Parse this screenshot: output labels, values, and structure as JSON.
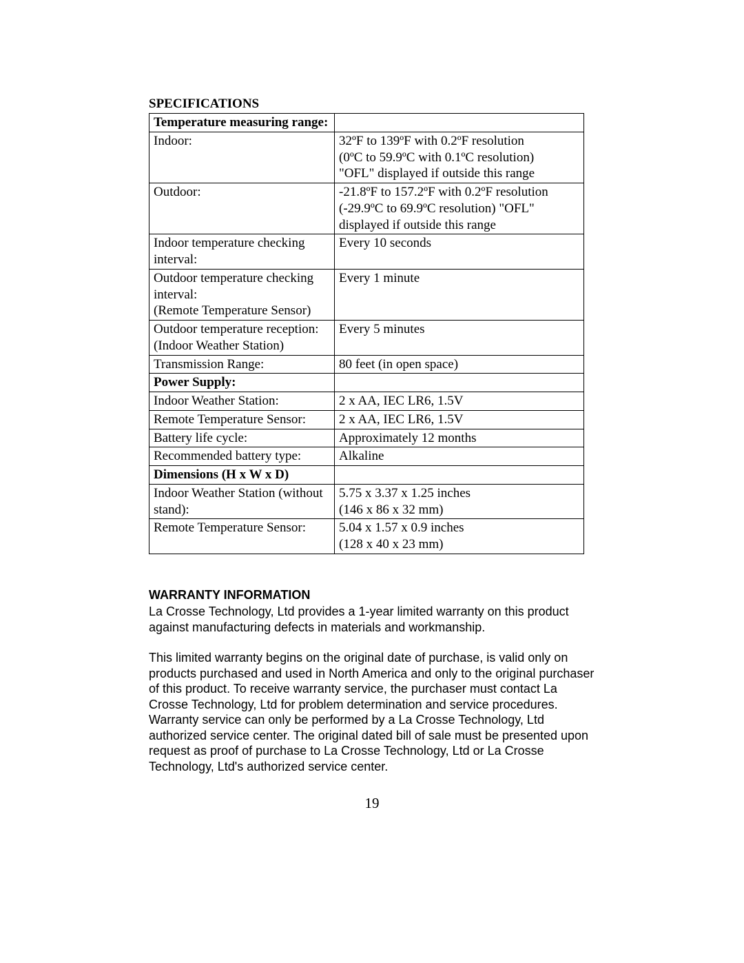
{
  "spec_title": "SPECIFICATIONS",
  "table": {
    "rows": [
      {
        "left": "Temperature measuring range:",
        "right": "",
        "left_bold": true
      },
      {
        "left": "Indoor:",
        "right": "32ºF to 139ºF with 0.2ºF resolution\n(0ºC to 59.9ºC with 0.1ºC resolution)\n\"OFL\" displayed if outside this range"
      },
      {
        "left": "Outdoor:",
        "right": "-21.8ºF to 157.2ºF with 0.2ºF resolution\n(-29.9ºC to 69.9ºC resolution)  \"OFL\"\ndisplayed if outside this range"
      },
      {
        "left": "Indoor temperature checking interval:",
        "right": "Every 10 seconds"
      },
      {
        "left": "Outdoor temperature checking interval:\n(Remote Temperature Sensor)",
        "right": "Every 1 minute"
      },
      {
        "left": "Outdoor temperature reception:\n(Indoor Weather Station)",
        "right": "Every 5 minutes"
      },
      {
        "left": "Transmission Range:",
        "right": "80 feet (in open space)"
      },
      {
        "left": "Power Supply:",
        "right": "",
        "left_bold": true
      },
      {
        "left": "Indoor Weather Station:",
        "right": "2 x AA, IEC LR6, 1.5V"
      },
      {
        "left": "Remote Temperature Sensor:",
        "right": "2 x AA, IEC LR6, 1.5V"
      },
      {
        "left": "Battery life cycle:",
        "right": "Approximately 12 months"
      },
      {
        "left": "Recommended battery type:",
        "right": "Alkaline"
      },
      {
        "left": "Dimensions (H x W x D)",
        "right": "",
        "left_bold": true
      },
      {
        "left": "Indoor Weather Station (without stand):",
        "right": "5.75 x 3.37 x 1.25 inches\n(146 x 86 x 32 mm)"
      },
      {
        "left": "Remote Temperature Sensor:",
        "right": "5.04 x 1.57 x 0.9 inches\n(128 x 40 x 23 mm)"
      }
    ]
  },
  "warranty": {
    "title": "WARRANTY INFORMATION",
    "p1": "La Crosse Technology, Ltd provides a 1-year limited warranty on this product against manufacturing defects in materials and workmanship.",
    "p2": "This limited warranty begins on the original date of purchase, is valid only on products purchased and used in North America and only to the original purchaser of this product.  To receive warranty service, the purchaser must contact La Crosse Technology, Ltd for problem determination and service procedures.  Warranty service can only be performed by a La Crosse Technology, Ltd authorized service center.  The original dated bill of sale must be presented upon request as proof of purchase to La Crosse Technology, Ltd or La Crosse Technology, Ltd's authorized service center."
  },
  "page_number": "19"
}
